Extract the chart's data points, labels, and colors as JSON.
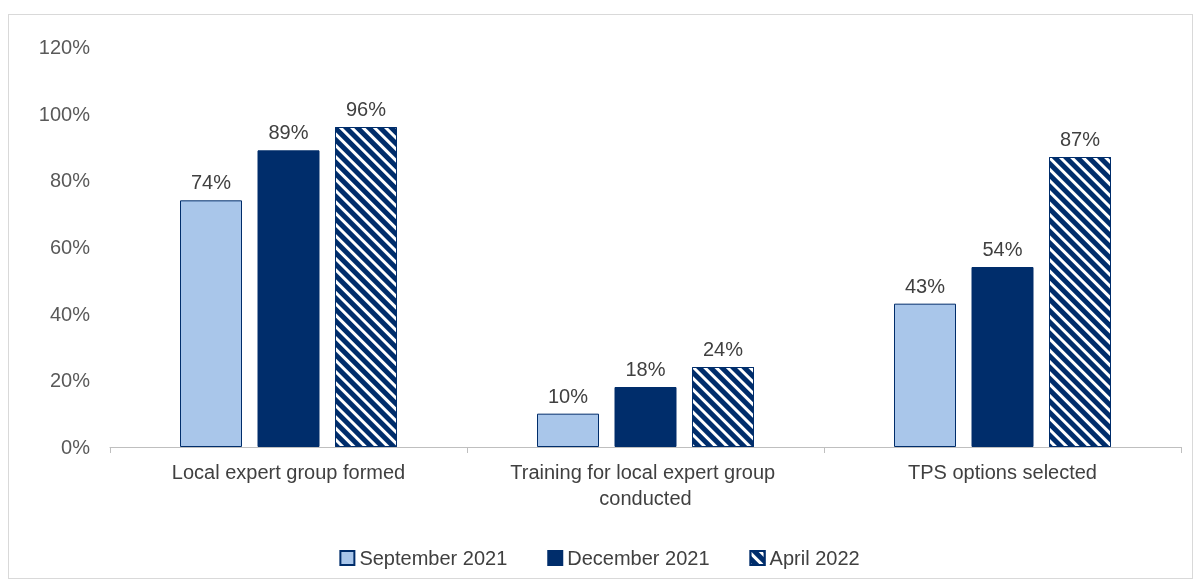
{
  "chart_data": {
    "type": "bar",
    "categories": [
      "Local expert group formed",
      "Training for local expert group conducted",
      "TPS options selected"
    ],
    "series": [
      {
        "name": "September 2021",
        "color": "#a9c6ea",
        "values": [
          74,
          10,
          43
        ]
      },
      {
        "name": "December 2021",
        "color": "#002d6b",
        "values": [
          89,
          18,
          54
        ]
      },
      {
        "name": "April 2022",
        "color": "#002d6b",
        "values": [
          96,
          24,
          87
        ]
      }
    ],
    "ylim": [
      0,
      120
    ],
    "yticks": [
      {
        "value": 0,
        "label": "0%"
      },
      {
        "value": 20,
        "label": "20%"
      },
      {
        "value": 40,
        "label": "40%"
      },
      {
        "value": 60,
        "label": "60%"
      },
      {
        "value": 80,
        "label": "80%"
      },
      {
        "value": 100,
        "label": "100%"
      },
      {
        "value": 120,
        "label": "120%"
      }
    ],
    "value_labels": [
      [
        "74%",
        "10%",
        "43%"
      ],
      [
        "89%",
        "18%",
        "54%"
      ],
      [
        "96%",
        "24%",
        "87%"
      ]
    ],
    "grid": false,
    "legend": "bottom"
  }
}
